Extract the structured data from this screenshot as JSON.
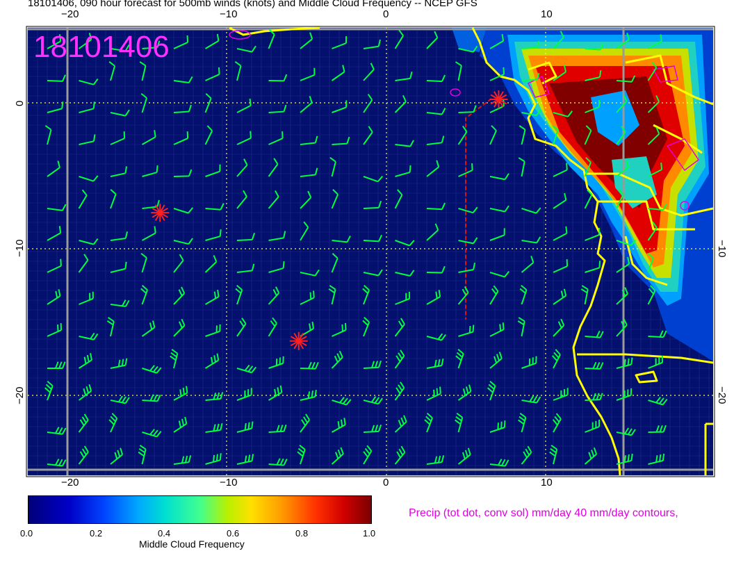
{
  "title": "18101406, 090 hour forecast for 500mb winds (knots) and Middle Cloud Frequency -- NCEP GFS",
  "stamp": "18101406",
  "axes": {
    "x_ticks": [
      "−20",
      "−10",
      "0",
      "10"
    ],
    "y_left_ticks": [
      "0",
      "−10",
      "−20"
    ],
    "y_right_ticks": [
      "−10",
      "−20"
    ],
    "lon_range": [
      -22.5,
      20
    ],
    "lat_range": [
      5,
      -25
    ]
  },
  "colorbar": {
    "label": "Middle Cloud Frequency",
    "ticks": [
      "0.0",
      "0.2",
      "0.4",
      "0.6",
      "0.8",
      "1.0"
    ],
    "colors": [
      "#00007a",
      "#0044ff",
      "#00e0d0",
      "#b8f000",
      "#ff3000",
      "#7a0000"
    ]
  },
  "precip_note": "Precip (tot dot, conv sol) mm/day 40 mm/day contours,",
  "colors": {
    "ocean": "#04106e",
    "coast": "#ffff00",
    "barb": "#00ff40",
    "precip": "#e000e0",
    "marker": "#ff2020",
    "grid": "#ffff40"
  },
  "markers": [
    {
      "lon": -14.3,
      "lat": -7.4
    },
    {
      "lon": -5.7,
      "lat": -16.0
    },
    {
      "lon": 6.7,
      "lat": 0.2
    }
  ]
}
